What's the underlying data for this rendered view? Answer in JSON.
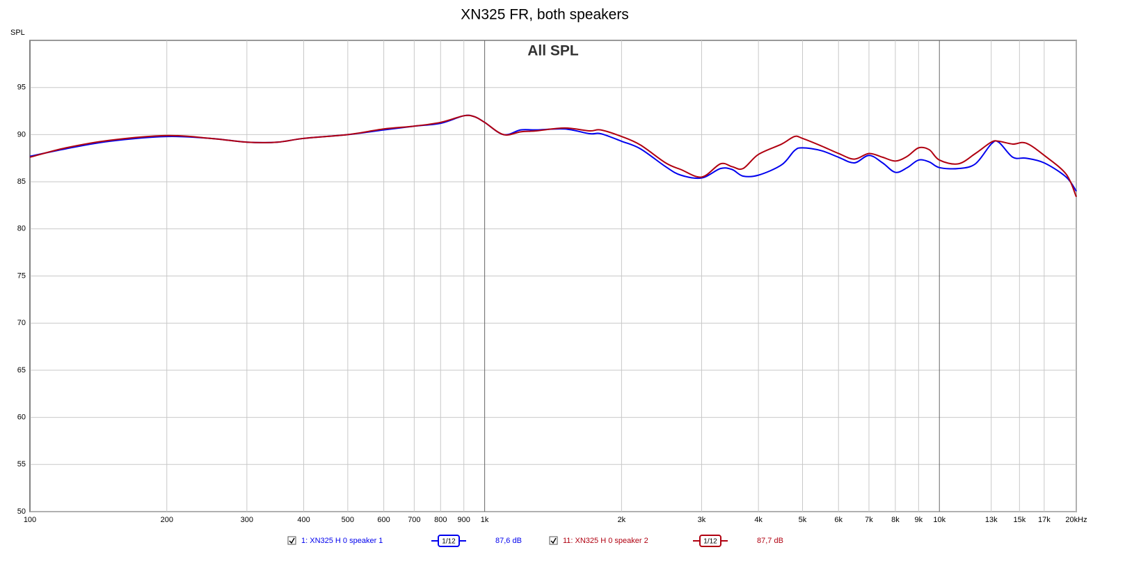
{
  "chart_data": {
    "type": "line",
    "title": "XN325 FR, both speakers",
    "y_label": "SPL",
    "annotation": "All SPL",
    "log_x": true,
    "grid": true,
    "xlim": [
      100,
      20000
    ],
    "ylim": [
      50,
      100
    ],
    "yticks": [
      50,
      55,
      60,
      65,
      70,
      75,
      80,
      85,
      90,
      95
    ],
    "xticks": [
      100,
      200,
      300,
      400,
      500,
      600,
      700,
      800,
      900,
      {
        "value": 1000,
        "label": "1k"
      },
      {
        "value": 2000,
        "label": "2k"
      },
      {
        "value": 3000,
        "label": "3k"
      },
      {
        "value": 4000,
        "label": "4k"
      },
      {
        "value": 5000,
        "label": "5k"
      },
      {
        "value": 6000,
        "label": "6k"
      },
      {
        "value": 7000,
        "label": "7k"
      },
      {
        "value": 8000,
        "label": "8k"
      },
      {
        "value": 9000,
        "label": "9k"
      },
      {
        "value": 10000,
        "label": "10k"
      },
      {
        "value": 13000,
        "label": "13k"
      },
      {
        "value": 15000,
        "label": "15k"
      },
      {
        "value": 17000,
        "label": "17k"
      },
      {
        "value": 20000,
        "label": "20kHz"
      }
    ],
    "x": [
      100,
      120,
      150,
      200,
      250,
      300,
      350,
      400,
      500,
      600,
      700,
      800,
      900,
      950,
      1000,
      1100,
      1200,
      1300,
      1500,
      1700,
      1800,
      2000,
      2200,
      2500,
      2700,
      3000,
      3300,
      3500,
      3700,
      4000,
      4500,
      4800,
      5000,
      5500,
      6000,
      6500,
      7000,
      7500,
      8000,
      8500,
      9000,
      9500,
      10000,
      11000,
      12000,
      13000,
      13500,
      14500,
      15500,
      17000,
      19000,
      20000
    ],
    "series": [
      {
        "name": "1: XN325 H 0 speaker 1",
        "color": "#0000ee",
        "smoothing": "1/12",
        "level": "87,6 dB",
        "values": [
          87.7,
          88.5,
          89.3,
          89.8,
          89.6,
          89.2,
          89.2,
          89.6,
          90.0,
          90.5,
          90.9,
          91.2,
          92.0,
          91.9,
          91.3,
          90.0,
          90.5,
          90.5,
          90.6,
          90.1,
          90.1,
          89.3,
          88.5,
          86.6,
          85.7,
          85.4,
          86.4,
          86.3,
          85.6,
          85.7,
          86.8,
          88.3,
          88.6,
          88.3,
          87.6,
          87.0,
          87.8,
          87.0,
          86.0,
          86.5,
          87.3,
          87.1,
          86.5,
          86.4,
          86.9,
          89.0,
          89.2,
          87.6,
          87.5,
          87.0,
          85.5,
          84.0
        ]
      },
      {
        "name": "11: XN325 H 0 speaker 2",
        "color": "#b00010",
        "smoothing": "1/12",
        "level": "87,7 dB",
        "values": [
          87.6,
          88.6,
          89.4,
          89.9,
          89.6,
          89.2,
          89.2,
          89.6,
          90.0,
          90.6,
          90.9,
          91.3,
          92.0,
          91.9,
          91.3,
          90.0,
          90.3,
          90.4,
          90.7,
          90.4,
          90.5,
          89.8,
          88.9,
          87.0,
          86.3,
          85.5,
          86.9,
          86.6,
          86.4,
          87.9,
          89.0,
          89.8,
          89.6,
          88.8,
          88.0,
          87.4,
          88.0,
          87.6,
          87.2,
          87.7,
          88.6,
          88.4,
          87.3,
          86.9,
          88.0,
          89.2,
          89.3,
          89.0,
          89.1,
          87.8,
          85.8,
          83.4
        ]
      }
    ]
  }
}
